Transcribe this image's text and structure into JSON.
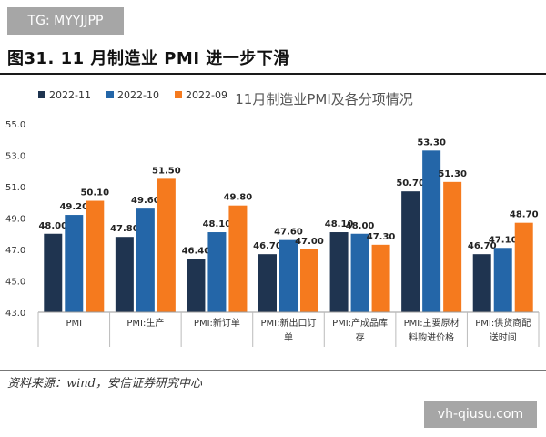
{
  "watermark_top": "TG: MYYJJPP",
  "watermark_bottom": "vh-qiusu.com",
  "figure_title": "图31. 11 月制造业 PMI 进一步下滑",
  "source": "资料来源：wind，安信证券研究中心",
  "chart_data": {
    "type": "bar",
    "title": "11月制造业PMI及各分项情况",
    "categories": [
      "PMI",
      "PMI:生产",
      "PMI:新订单",
      "PMI:新出口订单",
      "PMI:产成品库存",
      "PMI:主要原材料购进价格",
      "PMI:供货商配送时间"
    ],
    "category_lines": [
      [
        "PMI"
      ],
      [
        "PMI:生产"
      ],
      [
        "PMI:新订单"
      ],
      [
        "PMI:新出口订",
        "单"
      ],
      [
        "PMI:产成品库",
        "存"
      ],
      [
        "PMI:主要原材",
        "料购进价格"
      ],
      [
        "PMI:供货商配",
        "送时间"
      ]
    ],
    "series": [
      {
        "name": "2022-11",
        "color": "#1f3450",
        "values": [
          48.0,
          47.8,
          46.4,
          46.7,
          48.1,
          50.7,
          46.7
        ],
        "labels": [
          "48.00",
          "47.80",
          "46.40",
          "46.70",
          "48.10",
          "50.70",
          "46.70"
        ]
      },
      {
        "name": "2022-10",
        "color": "#2466a8",
        "values": [
          49.2,
          49.6,
          48.1,
          47.6,
          48.0,
          53.3,
          47.1
        ],
        "labels": [
          "49.20",
          "49.60",
          "48.10",
          "47.60",
          "48.00",
          "53.30",
          "47.10"
        ]
      },
      {
        "name": "2022-09",
        "color": "#f57a1e",
        "values": [
          50.1,
          51.5,
          49.8,
          47.0,
          47.3,
          51.3,
          48.7
        ],
        "labels": [
          "50.10",
          "51.50",
          "49.80",
          "47.00",
          "47.30",
          "51.30",
          "48.70"
        ]
      }
    ],
    "ylim": [
      43.0,
      55.0
    ],
    "yticks": [
      "43.0",
      "45.0",
      "47.0",
      "49.0",
      "51.0",
      "53.0",
      "55.0"
    ],
    "legend": "top-left",
    "grid": false
  }
}
